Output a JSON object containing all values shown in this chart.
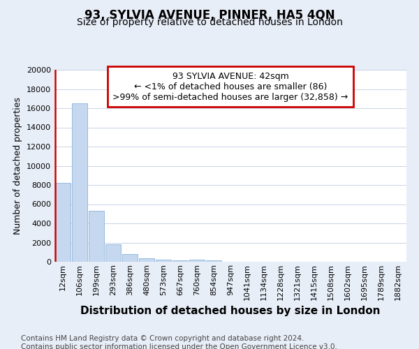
{
  "title": "93, SYLVIA AVENUE, PINNER, HA5 4QN",
  "subtitle": "Size of property relative to detached houses in London",
  "xlabel": "Distribution of detached houses by size in London",
  "ylabel": "Number of detached properties",
  "categories": [
    "12sqm",
    "106sqm",
    "199sqm",
    "293sqm",
    "386sqm",
    "480sqm",
    "573sqm",
    "667sqm",
    "760sqm",
    "854sqm",
    "947sqm",
    "1041sqm",
    "1134sqm",
    "1228sqm",
    "1321sqm",
    "1415sqm",
    "1508sqm",
    "1602sqm",
    "1695sqm",
    "1789sqm",
    "1882sqm"
  ],
  "values": [
    8200,
    16500,
    5300,
    1800,
    800,
    350,
    200,
    150,
    200,
    120,
    0,
    0,
    0,
    0,
    0,
    0,
    0,
    0,
    0,
    0,
    0
  ],
  "bar_color": "#c5d8f0",
  "bar_edge_color": "#8ab4d8",
  "annotation_title": "93 SYLVIA AVENUE: 42sqm",
  "annotation_line1": "← <1% of detached houses are smaller (86)",
  "annotation_line2": ">99% of semi-detached houses are larger (32,858) →",
  "annotation_box_color": "#ffffff",
  "annotation_border_color": "#cc0000",
  "red_line_color": "#cc0000",
  "ylim": [
    0,
    20000
  ],
  "yticks": [
    0,
    2000,
    4000,
    6000,
    8000,
    10000,
    12000,
    14000,
    16000,
    18000,
    20000
  ],
  "footnote": "Contains HM Land Registry data © Crown copyright and database right 2024.\nContains public sector information licensed under the Open Government Licence v3.0.",
  "background_color": "#e8eef8",
  "plot_bg_color": "#ffffff",
  "grid_color": "#c8d4e8",
  "title_fontsize": 12,
  "subtitle_fontsize": 10,
  "xlabel_fontsize": 11,
  "ylabel_fontsize": 9,
  "tick_fontsize": 8,
  "annotation_fontsize": 9,
  "footnote_fontsize": 7.5
}
